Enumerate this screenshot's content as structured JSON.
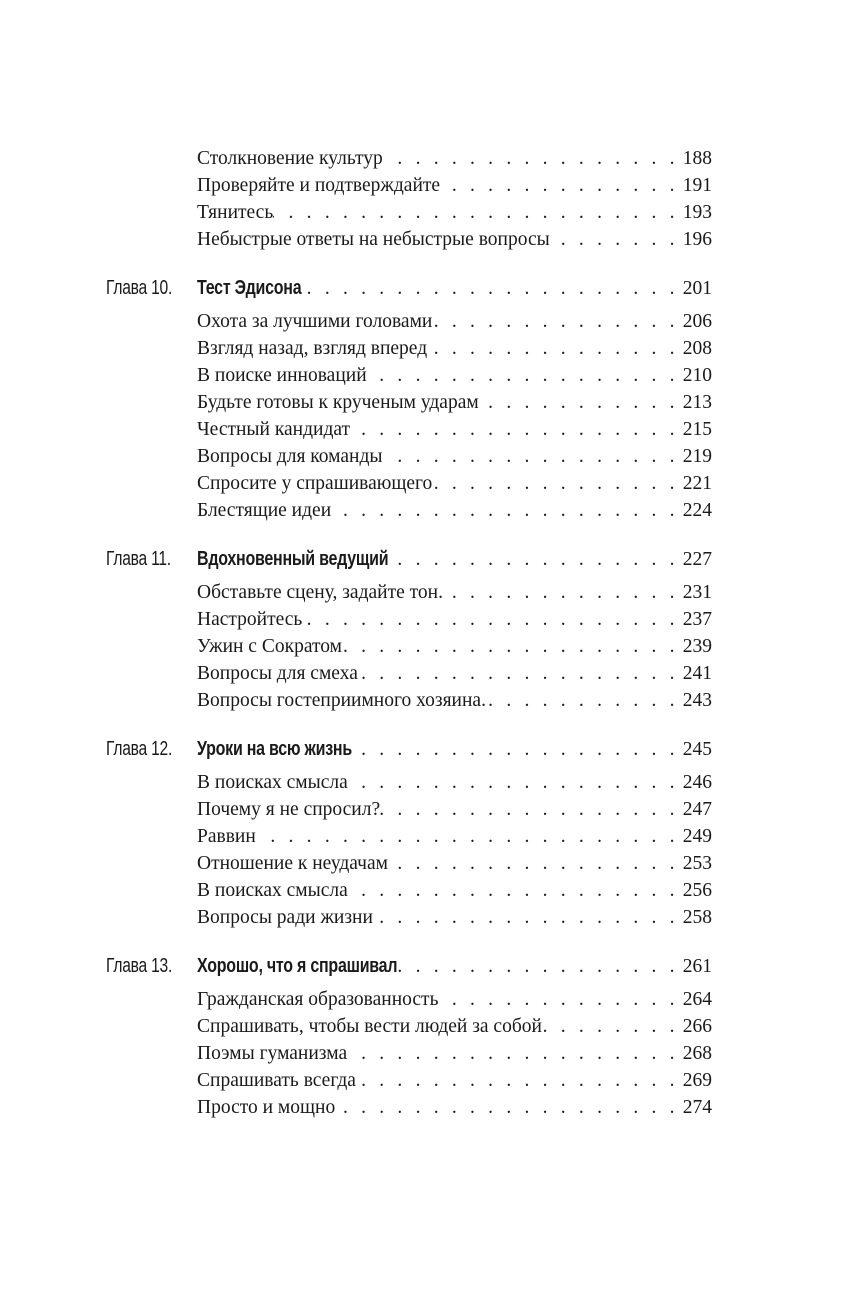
{
  "sections": [
    {
      "chapter": null,
      "items": [
        {
          "title": "Столкновение культур",
          "page": "188"
        },
        {
          "title": "Проверяйте и подтверждайте",
          "page": "191"
        },
        {
          "title": "Тянитесь",
          "page": "193"
        },
        {
          "title": "Небыстрые ответы на небыстрые вопросы",
          "page": "196"
        }
      ]
    },
    {
      "chapter": {
        "label": "Глава 10.",
        "title": "Тест Эдисона",
        "page": "201"
      },
      "items": [
        {
          "title": "Охота за лучшими головами",
          "page": "206"
        },
        {
          "title": "Взгляд назад, взгляд вперед",
          "page": "208"
        },
        {
          "title": "В поиске инноваций",
          "page": "210"
        },
        {
          "title": "Будьте готовы к крученым ударам",
          "page": "213"
        },
        {
          "title": "Честный кандидат",
          "page": "215"
        },
        {
          "title": "Вопросы для команды",
          "page": "219"
        },
        {
          "title": "Спросите у спрашивающего",
          "page": "221"
        },
        {
          "title": "Блестящие идеи",
          "page": "224"
        }
      ]
    },
    {
      "chapter": {
        "label": "Глава 11.",
        "title": "Вдохновенный ведущий",
        "page": "227"
      },
      "items": [
        {
          "title": "Обставьте сцену, задайте тон.",
          "page": "231"
        },
        {
          "title": "Настройтесь",
          "page": "237"
        },
        {
          "title": "Ужин с Сократом",
          "page": "239"
        },
        {
          "title": "Вопросы для смеха",
          "page": "241"
        },
        {
          "title": "Вопросы гостеприимного хозяина.",
          "page": "243"
        }
      ]
    },
    {
      "chapter": {
        "label": "Глава 12.",
        "title": "Уроки на всю жизнь",
        "page": "245"
      },
      "items": [
        {
          "title": "В поисках смысла",
          "page": "246"
        },
        {
          "title": "Почему я не спросил?",
          "page": "247"
        },
        {
          "title": "Раввин",
          "page": "249"
        },
        {
          "title": "Отношение к неудачам",
          "page": "253"
        },
        {
          "title": "В поисках смысла",
          "page": "256"
        },
        {
          "title": "Вопросы ради жизни",
          "page": "258"
        }
      ]
    },
    {
      "chapter": {
        "label": "Глава 13.",
        "title": "Хорошо, что я спрашивал",
        "page": "261"
      },
      "items": [
        {
          "title": "Гражданская образованность",
          "page": "264"
        },
        {
          "title": "Спрашивать, чтобы вести людей за собой",
          "page": "266"
        },
        {
          "title": "Поэмы гуманизма",
          "page": "268"
        },
        {
          "title": "Спрашивать всегда",
          "page": "269"
        },
        {
          "title": "Просто и мощно",
          "page": "274"
        }
      ]
    }
  ]
}
